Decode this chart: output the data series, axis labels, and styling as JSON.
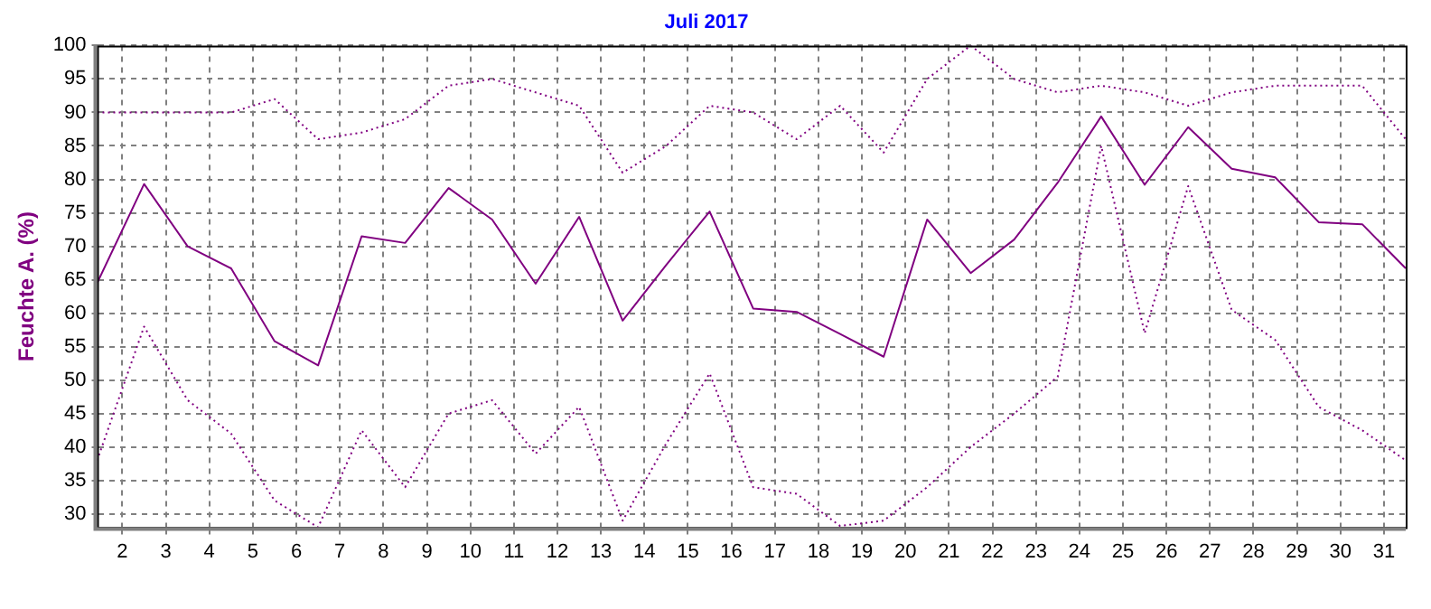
{
  "chart_data": {
    "type": "line",
    "title": "Juli 2017",
    "ylabel": "Feuchte A. (%)",
    "xlim": [
      1.42,
      31.5
    ],
    "xticks": [
      2,
      3,
      4,
      5,
      6,
      7,
      8,
      9,
      10,
      11,
      12,
      13,
      14,
      15,
      16,
      17,
      18,
      19,
      20,
      21,
      22,
      23,
      24,
      25,
      26,
      27,
      28,
      29,
      30,
      31
    ],
    "ylim": [
      28,
      100
    ],
    "yticks": [
      30,
      35,
      40,
      45,
      50,
      55,
      60,
      65,
      70,
      75,
      80,
      85,
      90,
      95,
      100
    ],
    "grid": true,
    "legend": false,
    "marker": "none",
    "series": [
      {
        "color": "#800080",
        "line_style": "dotted",
        "x": [
          1.42,
          2.5,
          3.5,
          4.5,
          5.5,
          6.5,
          7.5,
          8.5,
          9.5,
          10.5,
          11.5,
          12.5,
          13.5,
          14.5,
          15.5,
          16.5,
          17.5,
          18.5,
          19.5,
          20.5,
          21.5,
          22.5,
          23.5,
          24.5,
          25.5,
          26.5,
          27.5,
          28.5,
          29.5,
          30.5,
          31.5
        ],
        "values": [
          90,
          90,
          90,
          90,
          92,
          86,
          87,
          89,
          94,
          95,
          93,
          91,
          81,
          85,
          91,
          90,
          86,
          91,
          84,
          95,
          100,
          95,
          93,
          94,
          93,
          91,
          93,
          94,
          94,
          94,
          86
        ]
      },
      {
        "color": "#800080",
        "line_style": "solid",
        "x": [
          1.42,
          2.5,
          3.5,
          4.5,
          5.5,
          6.5,
          7.5,
          8.5,
          9.5,
          10.5,
          11.5,
          12.5,
          13.5,
          14.5,
          15.5,
          16.5,
          17.5,
          18.5,
          19.5,
          20.5,
          21.5,
          22.5,
          23.5,
          24.5,
          25.5,
          26.5,
          27.5,
          28.5,
          29.5,
          30.5,
          31.5
        ],
        "values": [
          64.5,
          79.3,
          70,
          66.7,
          55.8,
          52.2,
          71.5,
          70.5,
          78.7,
          74,
          64.4,
          74.4,
          58.9,
          67.2,
          75.2,
          60.7,
          60.2,
          56.9,
          53.5,
          74,
          66,
          71,
          79.5,
          89.4,
          79.2,
          87.8,
          81.6,
          80.3,
          73.6,
          73.3,
          66.7
        ]
      },
      {
        "color": "#800080",
        "line_style": "dotted",
        "x": [
          1.42,
          2.5,
          3.5,
          4.5,
          5.5,
          6.5,
          7.5,
          8.5,
          9.5,
          10.5,
          11.5,
          12.5,
          13.5,
          14.5,
          15.5,
          16.5,
          17.5,
          18.5,
          19.5,
          20.5,
          21.5,
          22.5,
          23.5,
          24.5,
          25.5,
          26.5,
          27.5,
          28.5,
          29.5,
          30.5,
          31.5
        ],
        "values": [
          38,
          58,
          47,
          42,
          32,
          28,
          42.5,
          34,
          45,
          47,
          39,
          46,
          29,
          40.5,
          51,
          34,
          33,
          28.2,
          29,
          34,
          40,
          45,
          50.5,
          85,
          57,
          79,
          60.5,
          56,
          46,
          42.5,
          38
        ]
      }
    ]
  }
}
